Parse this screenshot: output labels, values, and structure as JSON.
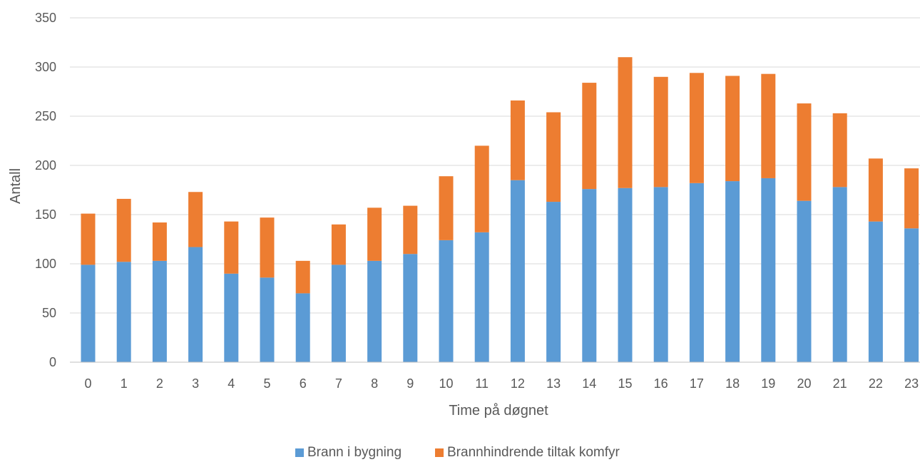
{
  "chart_data": {
    "type": "bar",
    "stacked": true,
    "title": "",
    "xlabel": "Time på døgnet",
    "ylabel": "Antall",
    "ylim": [
      0,
      350
    ],
    "yticks": [
      0,
      50,
      100,
      150,
      200,
      250,
      300,
      350
    ],
    "grid": true,
    "legend_position": "bottom",
    "categories": [
      "0",
      "1",
      "2",
      "3",
      "4",
      "5",
      "6",
      "7",
      "8",
      "9",
      "10",
      "11",
      "12",
      "13",
      "14",
      "15",
      "16",
      "17",
      "18",
      "19",
      "20",
      "21",
      "22",
      "23"
    ],
    "series": [
      {
        "name": "Brann i bygning",
        "color": "#5b9bd5",
        "values": [
          99,
          102,
          103,
          117,
          90,
          86,
          70,
          99,
          103,
          110,
          124,
          132,
          185,
          163,
          176,
          177,
          178,
          182,
          184,
          187,
          164,
          178,
          143,
          136
        ]
      },
      {
        "name": "Brannhindrende tiltak komfyr",
        "color": "#ed7d31",
        "values": [
          52,
          64,
          39,
          56,
          53,
          61,
          33,
          41,
          54,
          49,
          65,
          88,
          81,
          91,
          108,
          133,
          112,
          112,
          107,
          106,
          99,
          75,
          64,
          61
        ]
      }
    ]
  }
}
